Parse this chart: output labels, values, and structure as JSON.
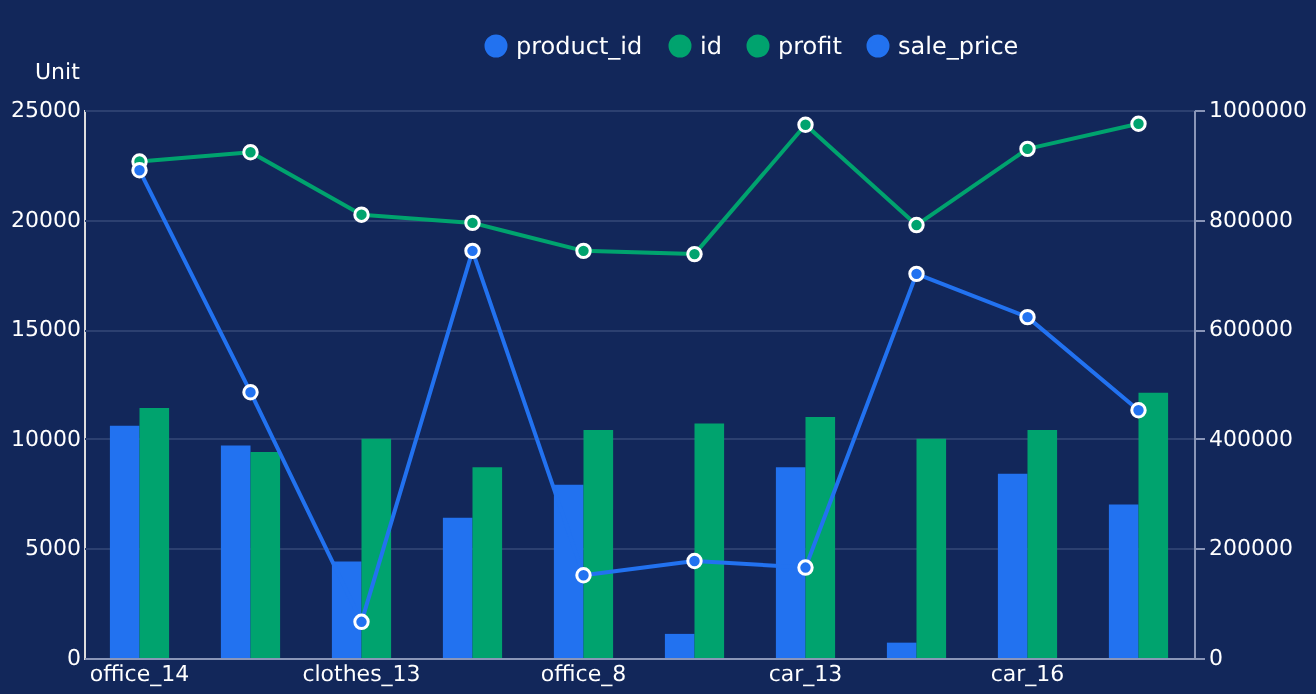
{
  "chart_data": {
    "type": "bar",
    "ylabel": "Unit",
    "categories": [
      "office_14",
      null,
      "clothes_13",
      null,
      "office_8",
      null,
      "car_13",
      null,
      "car_16",
      null
    ],
    "series": [
      {
        "name": "product_id",
        "color": "#2272f0",
        "values": [
          10600,
          9700,
          4400,
          6400,
          7900,
          1100,
          8700,
          700,
          8400,
          7000
        ]
      },
      {
        "name": "id",
        "color": "#00a36e",
        "values": [
          11400,
          9400,
          10000,
          8700,
          10400,
          10700,
          11000,
          10000,
          10400,
          12100
        ]
      },
      {
        "name": "profit",
        "type": "line",
        "axis": "y2",
        "color": "#00a36e",
        "values": [
          906000,
          923000,
          809000,
          794000,
          743000,
          737000,
          973000,
          790000,
          929000,
          975000
        ]
      },
      {
        "name": "sale_price",
        "type": "line",
        "axis": "y2",
        "color": "#2272f0",
        "values": [
          890000,
          485000,
          66000,
          743000,
          151000,
          177000,
          165000,
          701000,
          622000,
          452000
        ]
      }
    ],
    "ylim": [
      0,
      25000
    ],
    "yticks": [
      0,
      5000,
      10000,
      15000,
      20000,
      25000
    ],
    "y2lim": [
      0,
      1000000
    ],
    "y2ticks": [
      0,
      200000,
      400000,
      600000,
      800000,
      1000000
    ],
    "grid": "y",
    "legend": "top",
    "marker": "circle",
    "line_style": "solid"
  }
}
